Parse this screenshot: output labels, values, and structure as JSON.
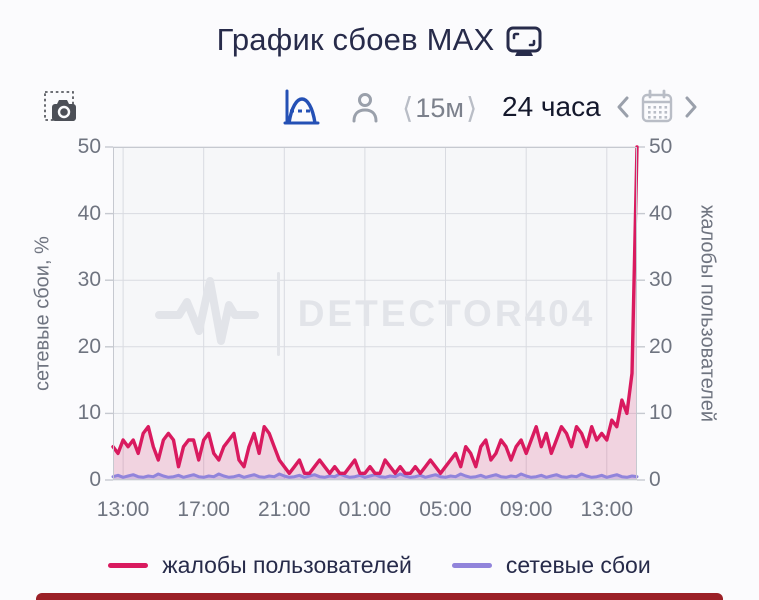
{
  "page": {
    "title": "График сбоев MAX",
    "background": "#fbfbfd"
  },
  "toolbar": {
    "screenshot_icon": "camera-screenshot-icon",
    "chart_mode_icon": "distribution-curve-icon",
    "user_mode_icon": "person-icon",
    "interval_open": "⟨",
    "interval_label": "15м",
    "interval_close": "⟩",
    "range_label": "24 часа",
    "calendar_icon": "calendar-icon",
    "colors": {
      "accent_blue": "#2450b5",
      "icon_gray": "#9aa0ab",
      "icon_dark": "#4c4f57"
    }
  },
  "chart_data": {
    "type": "area",
    "title": "График сбоев MAX",
    "ylabel_left": "сетевые сбои, %",
    "ylabel_right": "жалобы пользователей",
    "ylim": [
      0,
      50
    ],
    "y_ticks": [
      0,
      10,
      20,
      30,
      40,
      50
    ],
    "x_ticks": [
      "13:00",
      "17:00",
      "21:00",
      "01:00",
      "05:00",
      "09:00",
      "13:00"
    ],
    "x_tick_indices": [
      2,
      18,
      34,
      50,
      66,
      82,
      98
    ],
    "interval": "15m",
    "grid": true,
    "legend_position": "bottom",
    "watermark": "DETECTOR404",
    "colors": {
      "plot_bg": "#f6f7f9",
      "grid": "#d9dbe1",
      "border": "#c6c9d0",
      "axis_line": "#c6c9d0",
      "watermark": "#e2e4e9"
    },
    "series": [
      {
        "name": "жалобы пользователей",
        "color": "#d91a5f",
        "fill": "rgba(217,26,95,0.16)",
        "values": [
          5,
          4,
          6,
          5,
          6,
          4,
          7,
          8,
          5,
          3,
          6,
          7,
          6,
          2,
          5,
          6,
          6,
          3,
          6,
          7,
          4,
          3,
          5,
          6,
          7,
          3,
          2,
          5,
          7,
          4,
          8,
          7,
          5,
          3,
          2,
          1,
          2,
          3,
          1,
          1,
          2,
          3,
          2,
          1,
          2,
          1,
          1,
          2,
          3,
          1,
          1,
          2,
          1,
          1,
          3,
          2,
          1,
          2,
          1,
          1,
          2,
          1,
          2,
          3,
          2,
          1,
          2,
          3,
          4,
          2,
          5,
          4,
          2,
          5,
          6,
          3,
          4,
          6,
          5,
          3,
          5,
          6,
          4,
          6,
          8,
          5,
          7,
          4,
          6,
          8,
          7,
          5,
          8,
          7,
          5,
          8,
          6,
          7,
          6,
          9,
          8,
          12,
          10,
          16,
          50
        ]
      },
      {
        "name": "сетевые сбои",
        "color": "#9184db",
        "fill": "rgba(145,132,219,0.30)",
        "values": [
          0.5,
          0.7,
          0.4,
          0.6,
          0.8,
          0.5,
          0.4,
          0.6,
          0.5,
          0.9,
          0.6,
          0.4,
          0.5,
          0.7,
          0.4,
          0.6,
          0.8,
          0.5,
          0.4,
          0.6,
          0.5,
          0.9,
          0.6,
          0.4,
          0.5,
          0.7,
          0.4,
          0.6,
          0.8,
          0.5,
          0.4,
          0.6,
          0.5,
          0.9,
          0.6,
          0.4,
          0.5,
          0.7,
          0.4,
          0.6,
          0.8,
          0.5,
          0.4,
          0.6,
          0.5,
          0.9,
          0.6,
          0.4,
          0.5,
          0.7,
          0.4,
          0.6,
          0.8,
          0.5,
          0.4,
          0.6,
          0.5,
          0.9,
          0.6,
          0.4,
          0.5,
          0.7,
          0.4,
          0.6,
          0.8,
          0.5,
          0.4,
          0.6,
          0.5,
          0.9,
          0.6,
          0.4,
          0.5,
          0.7,
          0.4,
          0.6,
          0.8,
          0.5,
          0.4,
          0.6,
          0.5,
          0.9,
          0.6,
          0.4,
          0.5,
          0.7,
          0.4,
          0.6,
          0.8,
          0.5,
          0.4,
          0.6,
          0.5,
          0.9,
          0.6,
          0.4,
          0.5,
          0.7,
          0.4,
          0.6,
          0.8,
          0.5,
          0.4,
          0.6,
          0.5
        ]
      }
    ]
  },
  "legend": {
    "items": [
      {
        "label": "жалобы пользователей",
        "color": "#d91a5f"
      },
      {
        "label": "сетевые сбои",
        "color": "#9184db"
      }
    ]
  },
  "footer": {
    "bar_color": "#9b2027"
  }
}
